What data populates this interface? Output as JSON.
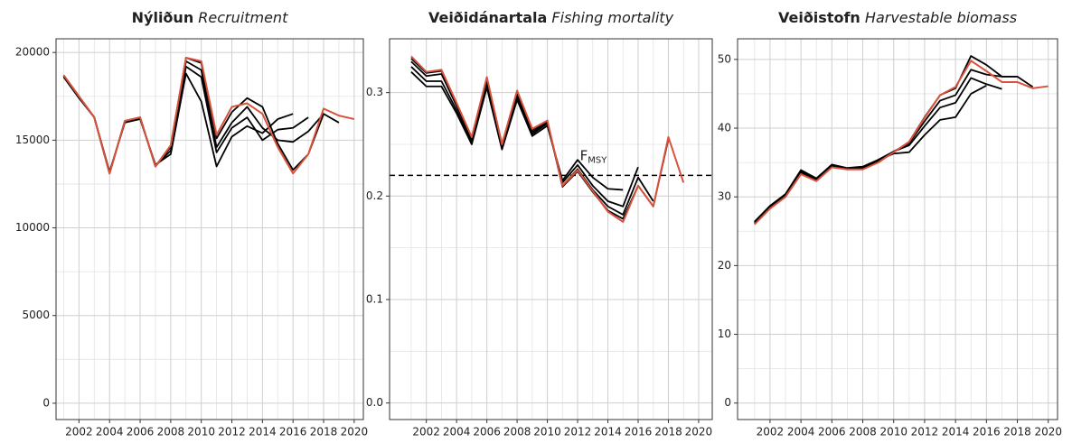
{
  "chart_data": [
    {
      "type": "line",
      "title": "Nýliðun",
      "title_en": "Recruitment",
      "x": [
        2001,
        2002,
        2003,
        2004,
        2005,
        2006,
        2007,
        2008,
        2009,
        2010,
        2011,
        2012,
        2013,
        2014,
        2015,
        2016,
        2017,
        2018,
        2019,
        2020
      ],
      "xlim": [
        2000.5,
        2020.6
      ],
      "xticks": [
        2002,
        2004,
        2006,
        2008,
        2010,
        2012,
        2014,
        2016,
        2018,
        2020
      ],
      "ylim": [
        -930,
        20780
      ],
      "yticks": [
        0,
        5000,
        10000,
        15000,
        20000
      ],
      "grid": true,
      "series": [
        {
          "color": "#000000",
          "values": [
            18600,
            17400,
            16300,
            13200,
            16000,
            16200,
            13600,
            14200,
            18800,
            17200,
            13500,
            15200,
            15800,
            15400,
            16200,
            16500,
            null,
            null,
            null,
            null
          ]
        },
        {
          "color": "#000000",
          "values": [
            18650,
            17450,
            16300,
            13150,
            16050,
            16250,
            13550,
            14400,
            19200,
            18600,
            14300,
            15700,
            16300,
            15000,
            15600,
            15700,
            16300,
            null,
            null,
            null
          ]
        },
        {
          "color": "#000000",
          "values": [
            18700,
            17500,
            16300,
            13100,
            16100,
            16300,
            13500,
            14600,
            19500,
            19000,
            14600,
            16000,
            16900,
            15700,
            15000,
            14900,
            15500,
            16500,
            null,
            null
          ]
        },
        {
          "color": "#000000",
          "values": [
            18700,
            17500,
            16300,
            13100,
            16100,
            16300,
            13500,
            14700,
            19700,
            19400,
            15100,
            16600,
            17400,
            16900,
            14800,
            13300,
            14200,
            16500,
            16000,
            null
          ]
        },
        {
          "color": "#d9533c",
          "values": [
            18700,
            17500,
            16300,
            13100,
            16100,
            16300,
            13500,
            14700,
            19700,
            19500,
            15300,
            16900,
            17100,
            16500,
            14600,
            13100,
            14200,
            16800,
            16400,
            16200
          ]
        }
      ]
    },
    {
      "type": "line",
      "title": "Veiðidánartala",
      "title_en": "Fishing mortality",
      "x": [
        2001,
        2002,
        2003,
        2004,
        2005,
        2006,
        2007,
        2008,
        2009,
        2010,
        2011,
        2012,
        2013,
        2014,
        2015,
        2016,
        2017,
        2018,
        2019
      ],
      "xlim": [
        1999.57,
        2020.9
      ],
      "xticks": [
        2002,
        2004,
        2006,
        2008,
        2010,
        2012,
        2014,
        2016,
        2018,
        2020
      ],
      "ylim": [
        -0.016,
        0.352
      ],
      "yticks": [
        {
          "value": 0,
          "label": "0.0"
        },
        0.1,
        0.2,
        0.3
      ],
      "grid": true,
      "hline": {
        "value": 0.22,
        "label": "F",
        "label_sub": "MSY"
      },
      "series": [
        {
          "color": "#000000",
          "values": [
            0.32,
            0.306,
            0.306,
            0.28,
            0.25,
            0.305,
            0.245,
            0.293,
            0.258,
            0.268,
            0.215,
            0.235,
            0.218,
            0.207,
            0.206,
            null,
            null,
            null,
            null
          ]
        },
        {
          "color": "#000000",
          "values": [
            0.325,
            0.311,
            0.311,
            0.283,
            0.252,
            0.309,
            0.247,
            0.296,
            0.26,
            0.27,
            0.213,
            0.23,
            0.21,
            0.195,
            0.19,
            0.228,
            null,
            null,
            null
          ]
        },
        {
          "color": "#000000",
          "values": [
            0.33,
            0.316,
            0.318,
            0.287,
            0.255,
            0.312,
            0.249,
            0.299,
            0.262,
            0.271,
            0.21,
            0.226,
            0.206,
            0.19,
            0.182,
            0.218,
            0.195,
            null,
            null
          ]
        },
        {
          "color": "#000000",
          "values": [
            0.333,
            0.319,
            0.321,
            0.289,
            0.256,
            0.314,
            0.25,
            0.301,
            0.264,
            0.272,
            0.209,
            0.224,
            0.204,
            0.186,
            0.178,
            0.21,
            0.19,
            0.255,
            null
          ]
        },
        {
          "color": "#d9533c",
          "values": [
            0.335,
            0.32,
            0.322,
            0.29,
            0.257,
            0.315,
            0.25,
            0.302,
            0.265,
            0.273,
            0.21,
            0.225,
            0.205,
            0.185,
            0.175,
            0.21,
            0.19,
            0.257,
            0.213
          ]
        }
      ]
    },
    {
      "type": "line",
      "title": "Veiðistofn",
      "title_en": "Harvestable biomass",
      "x": [
        2001,
        2002,
        2003,
        2004,
        2005,
        2006,
        2007,
        2008,
        2009,
        2010,
        2011,
        2012,
        2013,
        2014,
        2015,
        2016,
        2017,
        2018,
        2019,
        2020
      ],
      "xlim": [
        1999.9,
        2020.6
      ],
      "xticks": [
        2002,
        2004,
        2006,
        2008,
        2010,
        2012,
        2014,
        2016,
        2018,
        2020
      ],
      "ylim": [
        -2.4,
        53
      ],
      "yticks": [
        0,
        10,
        20,
        30,
        40,
        50
      ],
      "grid": true,
      "series": [
        {
          "color": "#000000",
          "values": [
            26.3,
            28.6,
            30.3,
            33.8,
            32.6,
            34.6,
            34.1,
            34.3,
            35.3,
            36.3,
            36.5,
            39.0,
            41.2,
            41.6,
            45.0,
            46.2,
            null,
            null,
            null,
            null
          ]
        },
        {
          "color": "#000000",
          "values": [
            26.4,
            28.7,
            30.4,
            33.9,
            32.7,
            34.7,
            34.2,
            34.4,
            35.4,
            36.6,
            37.5,
            40.3,
            43.0,
            43.7,
            47.3,
            46.4,
            45.7,
            null,
            null,
            null
          ]
        },
        {
          "color": "#000000",
          "values": [
            26.2,
            28.5,
            30.2,
            33.6,
            32.5,
            34.5,
            34.1,
            34.2,
            35.2,
            36.6,
            37.8,
            41.0,
            44.0,
            44.8,
            48.5,
            47.8,
            47.5,
            47.5,
            null,
            null
          ]
        },
        {
          "color": "#000000",
          "values": [
            26.1,
            28.4,
            30.1,
            33.4,
            32.4,
            34.4,
            34.0,
            34.1,
            35.1,
            36.5,
            38.0,
            41.6,
            44.8,
            45.8,
            50.5,
            49.2,
            47.5,
            47.5,
            46.0,
            null
          ]
        },
        {
          "color": "#d9533c",
          "values": [
            26.0,
            28.3,
            30.0,
            33.3,
            32.3,
            34.3,
            34.0,
            34.0,
            35.0,
            36.5,
            38.0,
            41.5,
            44.8,
            46.0,
            49.8,
            48.3,
            46.7,
            46.7,
            45.8,
            46.1
          ]
        }
      ]
    }
  ]
}
